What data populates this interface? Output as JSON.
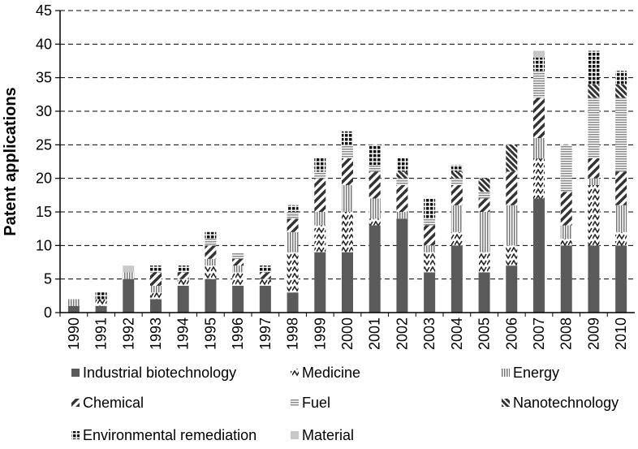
{
  "chart_data": {
    "type": "bar",
    "stacked": true,
    "title": "",
    "xlabel": "",
    "ylabel": "Patent applications",
    "ylim": [
      0,
      45
    ],
    "yticks": [
      0,
      5,
      10,
      15,
      20,
      25,
      30,
      35,
      40,
      45
    ],
    "grid": "horizontal-dashed",
    "legend_position": "bottom",
    "categories": [
      "1990",
      "1991",
      "1992",
      "1993",
      "1994",
      "1995",
      "1996",
      "1997",
      "1998",
      "1999",
      "2000",
      "2001",
      "2002",
      "2003",
      "2004",
      "2005",
      "2006",
      "2007",
      "2008",
      "2009",
      "2010"
    ],
    "series": [
      {
        "name": "Industrial biotechnology",
        "pattern": "solid-dark",
        "values": [
          1,
          1,
          5,
          2,
          4,
          5,
          4,
          4,
          3,
          9,
          9,
          13,
          14,
          6,
          10,
          6,
          7,
          17,
          10,
          10,
          10
        ]
      },
      {
        "name": "Medicine",
        "pattern": "zigzag",
        "values": [
          0,
          1,
          0,
          1,
          1,
          2,
          2,
          1,
          6,
          4,
          6,
          1,
          0,
          3,
          2,
          3,
          3,
          6,
          1,
          9,
          2
        ]
      },
      {
        "name": "Energy",
        "pattern": "vertical-lines",
        "values": [
          1,
          0,
          1,
          1,
          0,
          1,
          1,
          0,
          3,
          2,
          4,
          3,
          1,
          1,
          4,
          6,
          6,
          3,
          2,
          1,
          4
        ]
      },
      {
        "name": "Chemical",
        "pattern": "diagonal-bold",
        "values": [
          0,
          0,
          0,
          2,
          1,
          2,
          1,
          1,
          2,
          5,
          4,
          4,
          4,
          3,
          3,
          2,
          5,
          6,
          5,
          3,
          5
        ]
      },
      {
        "name": "Fuel",
        "pattern": "horizontal-lines",
        "values": [
          0,
          0,
          0,
          0,
          0,
          1,
          1,
          0,
          1,
          1,
          2,
          1,
          1,
          1,
          1,
          1,
          0,
          4,
          7,
          9,
          11
        ]
      },
      {
        "name": "Nanotechnology",
        "pattern": "diagonal-dense",
        "values": [
          0,
          0,
          0,
          0,
          0,
          0,
          0,
          0,
          0,
          0,
          0,
          0,
          1,
          0,
          1,
          2,
          4,
          0,
          0,
          2,
          2
        ]
      },
      {
        "name": "Environmental remediation",
        "pattern": "checker",
        "values": [
          0,
          1,
          0,
          1,
          1,
          1,
          0,
          1,
          1,
          2,
          2,
          3,
          2,
          3,
          1,
          0,
          0,
          2,
          0,
          5,
          2
        ]
      },
      {
        "name": "Material",
        "pattern": "solid-light",
        "values": [
          0,
          0,
          1,
          0,
          0,
          0,
          0,
          0,
          0,
          0,
          0,
          0,
          0,
          0,
          0,
          0,
          0,
          1,
          0,
          0,
          0
        ]
      }
    ]
  }
}
